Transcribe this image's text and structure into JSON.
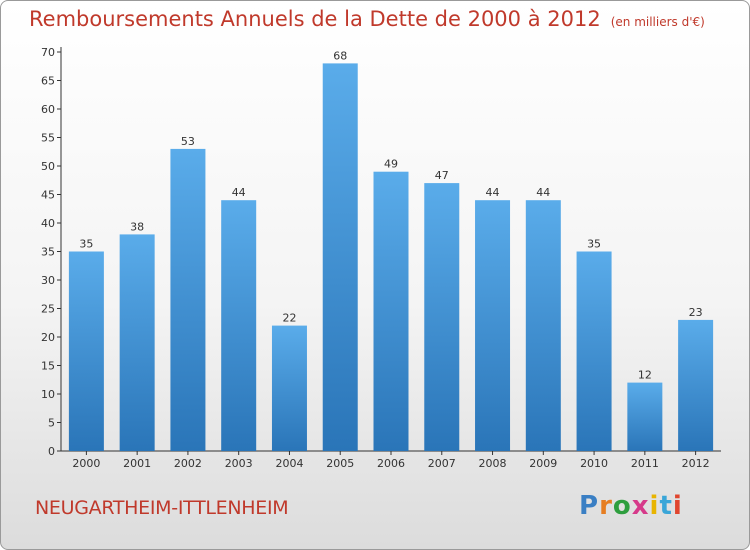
{
  "title": "Remboursements Annuels de la Dette de 2000 à 2012",
  "unit_note": "(en milliers d'€)",
  "commune": "NEUGARTHEIM-ITTLENHEIM",
  "logo": {
    "letters": [
      "P",
      "r",
      "o",
      "x",
      "i",
      "t",
      "i"
    ],
    "colors": [
      "#3a7fc4",
      "#e67e22",
      "#2e9e3e",
      "#d63a8a",
      "#e8b400",
      "#3aa6d8",
      "#e0462f"
    ]
  },
  "colors": {
    "bar_top": "#5aacea",
    "bar_bottom": "#2a75b8",
    "text": "#c0392b",
    "axis": "#333333"
  },
  "chart_data": {
    "type": "bar",
    "categories": [
      "2000",
      "2001",
      "2002",
      "2003",
      "2004",
      "2005",
      "2006",
      "2007",
      "2008",
      "2009",
      "2010",
      "2011",
      "2012"
    ],
    "values": [
      35,
      38,
      53,
      44,
      22,
      68,
      49,
      47,
      44,
      44,
      35,
      12,
      23
    ],
    "title": "Remboursements Annuels de la Dette de 2000 à 2012",
    "ylim": [
      0,
      70
    ],
    "yticks": [
      0,
      5,
      10,
      15,
      20,
      25,
      30,
      35,
      40,
      45,
      50,
      55,
      60,
      65,
      70
    ],
    "grid": false,
    "legend": "none"
  }
}
